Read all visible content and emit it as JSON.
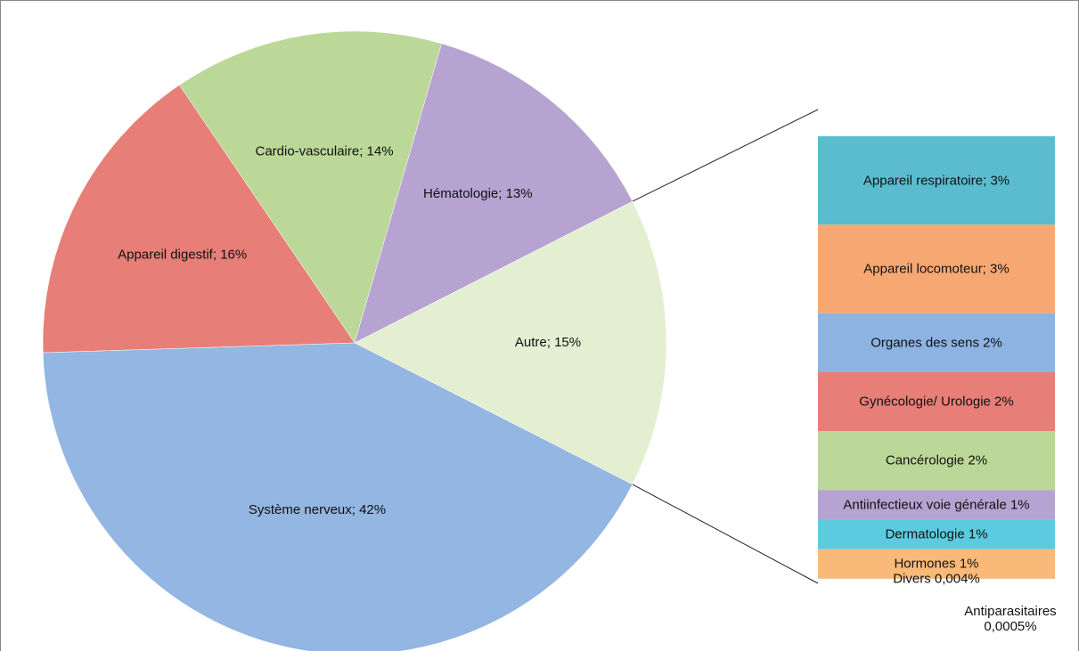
{
  "chart_data": [
    {
      "type": "pie",
      "value_labels": [
        "Autre; 15%",
        "Système nerveux; 42%",
        "Appareil digestif; 16%",
        "Cardio-vasculaire; 14%",
        "Hématologie; 13%"
      ],
      "values": [
        15,
        42,
        16,
        14,
        13
      ],
      "colors": [
        "#e4efd2",
        "#93b6e2",
        "#e77e78",
        "#bcd898",
        "#b7a3d2"
      ]
    },
    {
      "type": "stacked-bar",
      "value_labels": [
        "Appareil respiratoire; 3%",
        "Appareil locomoteur; 3%",
        "Organes des sens 2%",
        "Gynécologie/ Urologie 2%",
        "Cancérologie 2%",
        "Antiinfectieux voie générale 1%",
        "Dermatologie 1%",
        "Hormones 1%",
        "Divers 0,004%",
        "Antiparasitaires 0,0005%"
      ],
      "values": [
        3,
        3,
        2,
        2,
        2,
        1,
        1,
        1,
        0.004,
        0.0005
      ],
      "colors": [
        "#5bbccf",
        "#f7a872",
        "#8db3e2",
        "#e77e78",
        "#bcd898",
        "#b7a3d2",
        "#5ccbe0",
        "#f9b978",
        "#cfcde9",
        "#d8d8ee"
      ]
    }
  ]
}
